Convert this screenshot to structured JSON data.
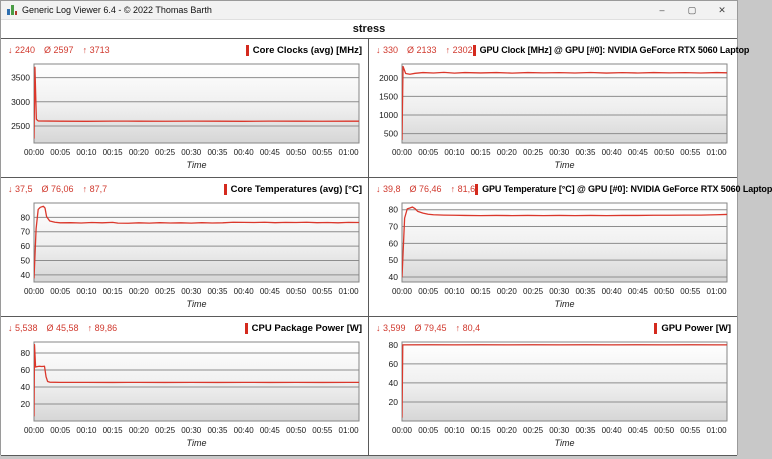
{
  "window": {
    "title": "Generic Log Viewer 6.4 - © 2022 Thomas Barth",
    "controls": {
      "minimize": "–",
      "maximize": "▢",
      "close": "✕"
    }
  },
  "heading": "stress",
  "stats_symbols": {
    "min": "↓",
    "avg": "Ø",
    "max": "↑"
  },
  "colors": {
    "series": "#da372b",
    "stats_text": "#d0392e",
    "legend_bar": "#d42a1e",
    "grid": "#8d8d8d",
    "plot_border": "#858585",
    "axis_text": "#1a1a1a",
    "gradient_top": "#ffffff",
    "gradient_mid": "#efefef",
    "gradient_bottom": "#d6d6d6"
  },
  "axis": {
    "xlabel": "Time",
    "x_max_minutes": 62,
    "x_tick_minutes": [
      0,
      5,
      10,
      15,
      20,
      25,
      30,
      35,
      40,
      45,
      50,
      55,
      60
    ],
    "x_tick_labels": [
      "00:00",
      "00:05",
      "00:10",
      "00:15",
      "00:20",
      "00:25",
      "00:30",
      "00:35",
      "00:40",
      "00:45",
      "00:50",
      "00:55",
      "01:00"
    ]
  },
  "chart_data": [
    {
      "type": "line",
      "title": "Core Clocks (avg) [MHz]",
      "stats": {
        "min": "2240",
        "avg": "2597",
        "max": "3713"
      },
      "ylim": [
        2150,
        3780
      ],
      "yticks": [
        2500,
        3000,
        3500
      ],
      "points": [
        [
          0,
          2240
        ],
        [
          0.18,
          3713
        ],
        [
          0.45,
          2640
        ],
        [
          0.8,
          2605
        ],
        [
          5,
          2600
        ],
        [
          10,
          2598
        ],
        [
          15,
          2602
        ],
        [
          20,
          2600
        ],
        [
          25,
          2599
        ],
        [
          30,
          2601
        ],
        [
          35,
          2600
        ],
        [
          40,
          2598
        ],
        [
          45,
          2601
        ],
        [
          50,
          2600
        ],
        [
          55,
          2599
        ],
        [
          60,
          2600
        ],
        [
          62,
          2600
        ]
      ]
    },
    {
      "type": "line",
      "title": "GPU Clock [MHz] @ GPU [#0]: NVIDIA GeForce RTX 5060 Laptop",
      "stats": {
        "min": "330",
        "avg": "2133",
        "max": "2302"
      },
      "ylim": [
        250,
        2370
      ],
      "yticks": [
        500,
        1000,
        1500,
        2000
      ],
      "points": [
        [
          0,
          330
        ],
        [
          0.2,
          2302
        ],
        [
          0.7,
          2115
        ],
        [
          1.5,
          2095
        ],
        [
          2.5,
          2120
        ],
        [
          4,
          2140
        ],
        [
          6,
          2128
        ],
        [
          8,
          2145
        ],
        [
          10,
          2126
        ],
        [
          12,
          2140
        ],
        [
          15,
          2130
        ],
        [
          18,
          2140
        ],
        [
          21,
          2126
        ],
        [
          24,
          2140
        ],
        [
          27,
          2132
        ],
        [
          30,
          2138
        ],
        [
          33,
          2128
        ],
        [
          36,
          2142
        ],
        [
          39,
          2127
        ],
        [
          42,
          2138
        ],
        [
          45,
          2129
        ],
        [
          48,
          2140
        ],
        [
          51,
          2131
        ],
        [
          54,
          2139
        ],
        [
          57,
          2128
        ],
        [
          60,
          2140
        ],
        [
          62,
          2134
        ]
      ]
    },
    {
      "type": "line",
      "title": "Core Temperatures (avg) [°C]",
      "stats": {
        "min": "37,5",
        "avg": "76,06",
        "max": "87,7"
      },
      "ylim": [
        35,
        90
      ],
      "yticks": [
        40,
        50,
        60,
        70,
        80
      ],
      "points": [
        [
          0,
          37.5
        ],
        [
          0.4,
          72
        ],
        [
          0.8,
          85.5
        ],
        [
          1.2,
          87
        ],
        [
          1.8,
          87.7
        ],
        [
          2.1,
          86.5
        ],
        [
          2.4,
          80.5
        ],
        [
          3,
          77.5
        ],
        [
          4,
          76.6
        ],
        [
          5,
          76.2
        ],
        [
          7,
          76.3
        ],
        [
          9,
          76.1
        ],
        [
          11,
          76.4
        ],
        [
          13,
          76.2
        ],
        [
          15,
          76.5
        ],
        [
          16,
          76.0
        ],
        [
          18,
          75.9
        ],
        [
          20,
          76.2
        ],
        [
          22,
          76.0
        ],
        [
          24,
          76.3
        ],
        [
          26,
          76.1
        ],
        [
          28,
          76.2
        ],
        [
          30,
          76.0
        ],
        [
          32,
          76.3
        ],
        [
          34,
          76.1
        ],
        [
          36,
          76.2
        ],
        [
          38,
          76.6
        ],
        [
          40,
          76.5
        ],
        [
          42,
          76.4
        ],
        [
          44,
          76.6
        ],
        [
          46,
          76.3
        ],
        [
          48,
          76.5
        ],
        [
          50,
          76.4
        ],
        [
          52,
          76.6
        ],
        [
          54,
          76.3
        ],
        [
          56,
          76.4
        ],
        [
          58,
          76.2
        ],
        [
          60,
          76.5
        ],
        [
          62,
          76.4
        ]
      ]
    },
    {
      "type": "line",
      "title": "GPU Temperature [°C] @ GPU [#0]: NVIDIA GeForce RTX 5060 Laptop",
      "stats": {
        "min": "39,8",
        "avg": "76,46",
        "max": "81,6"
      },
      "ylim": [
        37,
        84
      ],
      "yticks": [
        40,
        50,
        60,
        70,
        80
      ],
      "points": [
        [
          0,
          39.8
        ],
        [
          0.5,
          75
        ],
        [
          1,
          80.5
        ],
        [
          1.5,
          81
        ],
        [
          2,
          81.6
        ],
        [
          2.5,
          80.6
        ],
        [
          3,
          79
        ],
        [
          4,
          78
        ],
        [
          5,
          77.3
        ],
        [
          6,
          77
        ],
        [
          8,
          76.8
        ],
        [
          10,
          76.7
        ],
        [
          12,
          76.6
        ],
        [
          15,
          76.5
        ],
        [
          18,
          76.6
        ],
        [
          21,
          76.5
        ],
        [
          24,
          76.6
        ],
        [
          27,
          76.5
        ],
        [
          30,
          76.6
        ],
        [
          33,
          76.5
        ],
        [
          36,
          76.6
        ],
        [
          39,
          76.5
        ],
        [
          42,
          76.6
        ],
        [
          45,
          76.6
        ],
        [
          48,
          76.7
        ],
        [
          51,
          76.7
        ],
        [
          54,
          76.8
        ],
        [
          57,
          76.8
        ],
        [
          60,
          77.0
        ],
        [
          62,
          77.2
        ]
      ]
    },
    {
      "type": "line",
      "title": "CPU Package Power [W]",
      "stats": {
        "min": "5,538",
        "avg": "45,58",
        "max": "89,86"
      },
      "ylim": [
        0,
        93
      ],
      "yticks": [
        20,
        40,
        60,
        80
      ],
      "points": [
        [
          0,
          5.5
        ],
        [
          0.1,
          89.9
        ],
        [
          0.3,
          63.5
        ],
        [
          0.6,
          64
        ],
        [
          1,
          64.5
        ],
        [
          1.5,
          64.2
        ],
        [
          2,
          64.5
        ],
        [
          2.3,
          52
        ],
        [
          2.6,
          46.5
        ],
        [
          3,
          45.7
        ],
        [
          5,
          45.5
        ],
        [
          10,
          45.5
        ],
        [
          15,
          45.4
        ],
        [
          20,
          45.5
        ],
        [
          25,
          45.4
        ],
        [
          30,
          45.5
        ],
        [
          35,
          45.4
        ],
        [
          40,
          45.5
        ],
        [
          45,
          45.4
        ],
        [
          50,
          45.5
        ],
        [
          55,
          45.4
        ],
        [
          60,
          45.5
        ],
        [
          62,
          45.5
        ]
      ]
    },
    {
      "type": "line",
      "title": "GPU Power [W]",
      "stats": {
        "min": "3,599",
        "avg": "79,45",
        "max": "80,4"
      },
      "ylim": [
        0,
        83
      ],
      "yticks": [
        20,
        40,
        60,
        80
      ],
      "points": [
        [
          0,
          3.6
        ],
        [
          0.15,
          80
        ],
        [
          5,
          80.1
        ],
        [
          10,
          80.0
        ],
        [
          15,
          80.1
        ],
        [
          20,
          80.0
        ],
        [
          25,
          80.1
        ],
        [
          30,
          80.0
        ],
        [
          35,
          80.1
        ],
        [
          40,
          80.0
        ],
        [
          45,
          80.1
        ],
        [
          50,
          80.0
        ],
        [
          55,
          80.1
        ],
        [
          60,
          80.0
        ],
        [
          62,
          80.0
        ]
      ]
    }
  ]
}
